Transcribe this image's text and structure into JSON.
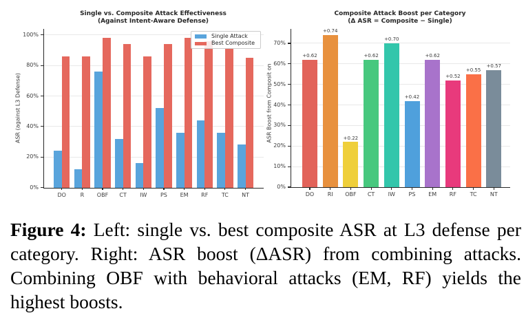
{
  "caption": {
    "label": "Figure 4:",
    "text": " Left: single vs. best composite ASR at L3 defense per category. Right: ASR boost (ΔASR) from combining attacks. Combining OBF with behavioral attacks (EM, RF) yields the highest boosts."
  },
  "chart_data": [
    {
      "type": "bar",
      "title": "Single vs. Composite Attack Effectiveness",
      "subtitle": "(Against Intent-Aware Defense)",
      "ylabel": "ASR (against L3 Defense)",
      "categories": [
        "DO",
        "R",
        "OBF",
        "CT",
        "IW",
        "PS",
        "EM",
        "RF",
        "TC",
        "NT"
      ],
      "series": [
        {
          "name": "Single Attack",
          "color": "#59A4DC",
          "values": [
            24,
            12,
            76,
            32,
            16,
            52,
            36,
            44,
            36,
            28
          ]
        },
        {
          "name": "Best Composite",
          "color": "#E5685D",
          "values": [
            86,
            86,
            98,
            94,
            86,
            94,
            98,
            96,
            91,
            85
          ]
        }
      ],
      "ylim": [
        0,
        104
      ],
      "yticks": [
        0,
        20,
        40,
        60,
        80,
        100
      ],
      "ytick_suffix": "%",
      "legend_position": "upper right",
      "grid": true
    },
    {
      "type": "bar",
      "title": "Composite Attack Boost per Category",
      "subtitle": "(Δ ASR = Composite − Single)",
      "ylabel": "ASR Boost from Composit on",
      "categories": [
        "DO",
        "RI",
        "OBF",
        "CT",
        "IW",
        "PS",
        "EM",
        "RF",
        "TC",
        "NT"
      ],
      "values": [
        62,
        74,
        22,
        62,
        70,
        42,
        62,
        52,
        55,
        57
      ],
      "bar_labels": [
        "+0.62",
        "+0.74",
        "+0.22",
        "+0.62",
        "+0.70",
        "+0.42",
        "+0.62",
        "+0.52",
        "+0.55",
        "+0.57"
      ],
      "colors": [
        "#E2635A",
        "#E8913E",
        "#EFCF3A",
        "#47C87E",
        "#33C6AB",
        "#4FA0DC",
        "#A873CB",
        "#E83A7C",
        "#FA7047",
        "#7A8C9A"
      ],
      "ylim": [
        0,
        77
      ],
      "yticks": [
        0,
        10,
        20,
        30,
        40,
        50,
        60,
        70
      ],
      "ytick_suffix": "%",
      "grid": true
    }
  ]
}
